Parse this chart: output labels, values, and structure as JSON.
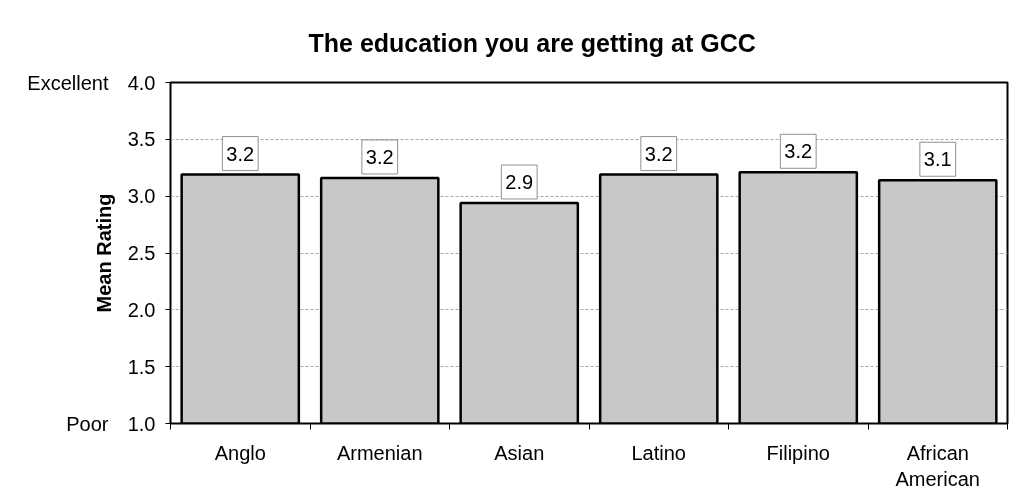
{
  "chart_data": {
    "type": "bar",
    "title": "The education you are getting at GCC",
    "ylabel": "Mean Rating",
    "categories": [
      "Anglo",
      "Armenian",
      "Asian",
      "Latino",
      "Filipino",
      "African American"
    ],
    "values": [
      3.19,
      3.16,
      2.94,
      3.19,
      3.21,
      3.14
    ],
    "value_labels": [
      "3.2",
      "3.2",
      "2.9",
      "3.2",
      "3.2",
      "3.1"
    ],
    "color": "#c8c8c8",
    "ylim": [
      1,
      4
    ],
    "yticks": [
      {
        "value": 1,
        "label": "1.0"
      },
      1.5,
      {
        "value": 2,
        "label": "2.0"
      },
      2.5,
      {
        "value": 3,
        "label": "3.0"
      },
      3.5,
      {
        "value": 4,
        "label": "4.0"
      }
    ],
    "grid": "y",
    "annotations": [
      "Excellent",
      "Poor"
    ]
  }
}
